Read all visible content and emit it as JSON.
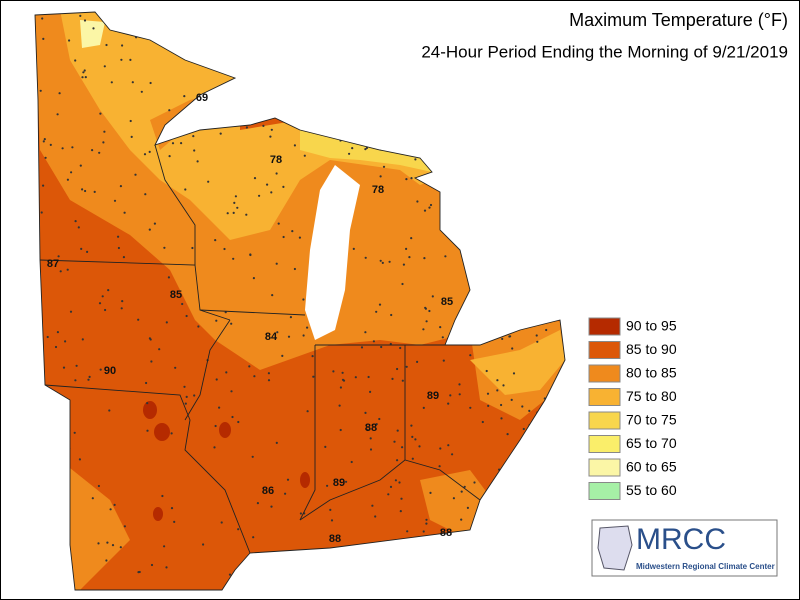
{
  "header": {
    "title": "Maximum Temperature (°F)",
    "subtitle": "24-Hour Period Ending the Morning of 9/21/2019"
  },
  "legend": [
    {
      "label": "90 to 95",
      "color": "#b52a00"
    },
    {
      "label": "85 to 90",
      "color": "#dc5708"
    },
    {
      "label": "80 to 85",
      "color": "#ef8a1d"
    },
    {
      "label": "75 to 80",
      "color": "#f8b232"
    },
    {
      "label": "70 to 75",
      "color": "#f8d64c"
    },
    {
      "label": "65 to 70",
      "color": "#faee6a"
    },
    {
      "label": "60 to 65",
      "color": "#fbf6a6"
    },
    {
      "label": "55 to 60",
      "color": "#a6f0a6"
    }
  ],
  "stations": [
    "69",
    "78",
    "78",
    "87",
    "85",
    "84",
    "90",
    "85",
    "89",
    "88",
    "86",
    "89",
    "88",
    "88"
  ],
  "logo": {
    "name": "MRCC",
    "subtitle": "Midwestern Regional Climate Center"
  }
}
